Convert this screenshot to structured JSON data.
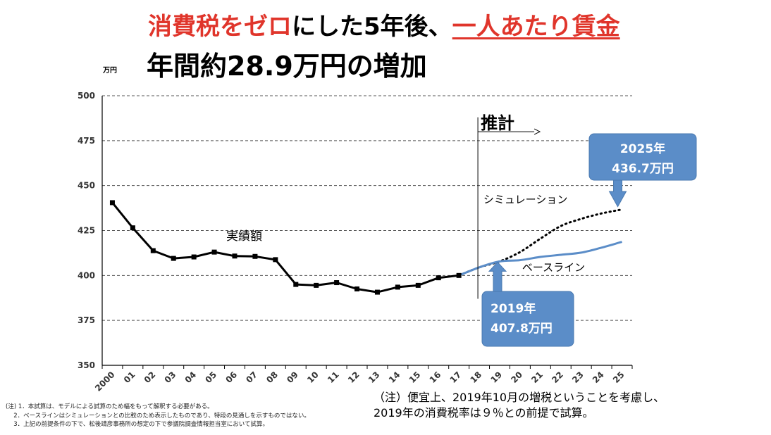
{
  "title": {
    "line1_red": "消費税をゼロ",
    "line1_mid": "にした5年後、",
    "line1_red_underlined": "一人あたり賃金",
    "line2": "年間約28.9万円の増加"
  },
  "unit_label": "万円",
  "chart_data": {
    "type": "line",
    "title": "",
    "xlabel": "",
    "ylabel": "万円",
    "ylim": [
      350,
      500
    ],
    "yticks": [
      350,
      375,
      400,
      425,
      450,
      475,
      500
    ],
    "grid": "horizontal dashed",
    "categories": [
      "2000",
      "01",
      "02",
      "03",
      "04",
      "05",
      "06",
      "07",
      "08",
      "09",
      "10",
      "11",
      "12",
      "13",
      "14",
      "15",
      "16",
      "17",
      "18",
      "19",
      "20",
      "21",
      "22",
      "23",
      "24",
      "25"
    ],
    "series": [
      {
        "name": "実績額",
        "style": "solid-black-markers",
        "color": "#000000",
        "values": [
          440.5,
          426.5,
          413.8,
          409.5,
          410.3,
          413.0,
          410.8,
          410.6,
          408.8,
          395.0,
          394.5,
          396.0,
          392.5,
          390.7,
          393.5,
          394.5,
          398.7,
          400.0,
          null,
          null,
          null,
          null,
          null,
          null,
          null,
          null
        ]
      },
      {
        "name": "ベースライン",
        "style": "solid-blue",
        "color": "#5b8dc8",
        "values": [
          null,
          null,
          null,
          null,
          null,
          null,
          null,
          null,
          null,
          null,
          null,
          null,
          null,
          null,
          null,
          null,
          null,
          400.0,
          404.5,
          407.8,
          408.5,
          410.3,
          411.5,
          412.7,
          415.5,
          418.7
        ]
      },
      {
        "name": "シミュレーション",
        "style": "dotted-black",
        "color": "#000000",
        "values": [
          null,
          null,
          null,
          null,
          null,
          null,
          null,
          null,
          null,
          null,
          null,
          null,
          null,
          null,
          null,
          null,
          null,
          400.0,
          404.5,
          407.8,
          413.0,
          420.5,
          427.5,
          431.5,
          434.5,
          436.7
        ]
      }
    ],
    "forecast_label": "推計",
    "forecast_start_index": 18,
    "callouts": [
      {
        "line1": "2025年",
        "line2": "436.7万円",
        "index": 25,
        "value": 436.7
      },
      {
        "line1": "2019年",
        "line2": "407.8万円",
        "index": 19,
        "value": 407.8
      }
    ],
    "accent_color": "#5b8dc8"
  },
  "notes": {
    "jp_line1": "（注）便宜上、2019年10月の増税ということを考慮し、",
    "jp_line2": "2019年の消費税率は９％との前提で試算。",
    "small_line1": "(注) 1．本試算は、モデルによる試算のため幅をもって解釈する必要がある。",
    "small_line2": "　 2．ベースラインはシミュレーションとの比較のため表示したものであり、特段の見通しを示すものではない。",
    "small_line3": "　 3．上記の前提条件の下で、松後靖彦事務所の想定の下で参議院調査情報担当室において試算。"
  }
}
